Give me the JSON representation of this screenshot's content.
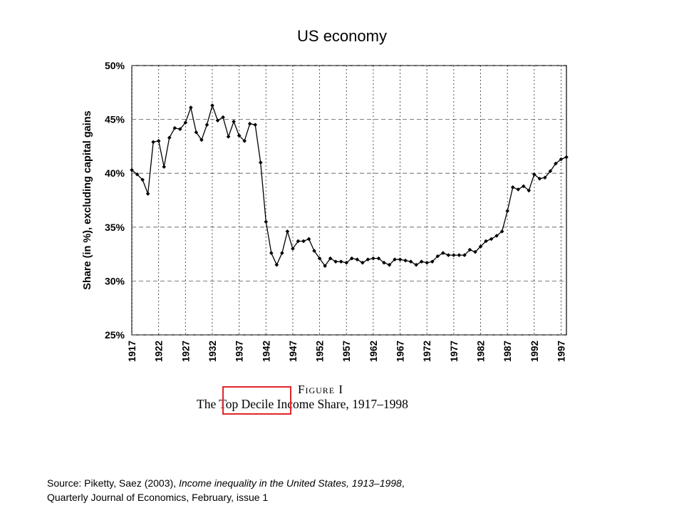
{
  "slide": {
    "title": "US economy",
    "source_prefix": "Source: Piketty, Saez (2003), ",
    "source_title": "Income inequality in the United States, 1913–1998",
    "source_suffix": ",",
    "source_line2": "Quarterly Journal of Economics, February, issue 1"
  },
  "figure": {
    "figure_label": "Figure I",
    "caption_pre": "The ",
    "caption_highlight": "Top Decile",
    "caption_post": " Income Share, 1917–1998",
    "highlight_color": "#e0262a"
  },
  "chart_data": {
    "type": "line",
    "title": "",
    "xlabel": "",
    "ylabel": "Share (in %), excluding capital gains",
    "xlim": [
      1917,
      1998
    ],
    "ylim": [
      25,
      50
    ],
    "yticks": [
      25,
      30,
      35,
      40,
      45,
      50
    ],
    "ytick_labels": [
      "25%",
      "30%",
      "35%",
      "40%",
      "45%",
      "50%"
    ],
    "xticks": [
      1917,
      1922,
      1927,
      1932,
      1937,
      1942,
      1947,
      1952,
      1957,
      1962,
      1967,
      1972,
      1977,
      1982,
      1987,
      1992,
      1997
    ],
    "grid": true,
    "series": [
      {
        "x": [
          1917,
          1918,
          1919,
          1920,
          1921,
          1922,
          1923,
          1924,
          1925,
          1926,
          1927,
          1928,
          1929,
          1930,
          1931,
          1932,
          1933,
          1934,
          1935,
          1936,
          1937,
          1938,
          1939,
          1940,
          1941,
          1942,
          1943,
          1944,
          1945,
          1946,
          1947,
          1948,
          1949,
          1950,
          1951,
          1952,
          1953,
          1954,
          1955,
          1956,
          1957,
          1958,
          1959,
          1960,
          1961,
          1962,
          1963,
          1964,
          1965,
          1966,
          1967,
          1968,
          1969,
          1970,
          1971,
          1972,
          1973,
          1974,
          1975,
          1976,
          1977,
          1978,
          1979,
          1980,
          1981,
          1982,
          1983,
          1984,
          1985,
          1986,
          1987,
          1988,
          1989,
          1990,
          1991,
          1992,
          1993,
          1994,
          1995,
          1996,
          1997,
          1998
        ],
        "values": [
          40.3,
          39.9,
          39.4,
          38.1,
          42.9,
          43.0,
          40.6,
          43.3,
          44.2,
          44.1,
          44.7,
          46.1,
          43.8,
          43.1,
          44.5,
          46.3,
          44.9,
          45.2,
          43.4,
          44.8,
          43.5,
          43.0,
          44.6,
          44.5,
          41.0,
          35.5,
          32.6,
          31.5,
          32.6,
          34.6,
          33.0,
          33.7,
          33.7,
          33.9,
          32.8,
          32.1,
          31.4,
          32.1,
          31.8,
          31.8,
          31.7,
          32.1,
          32.0,
          31.7,
          32.0,
          32.1,
          32.1,
          31.7,
          31.5,
          32.0,
          32.0,
          31.9,
          31.8,
          31.5,
          31.8,
          31.7,
          31.8,
          32.3,
          32.6,
          32.4,
          32.4,
          32.4,
          32.4,
          32.9,
          32.7,
          33.2,
          33.7,
          33.9,
          34.2,
          34.6,
          36.5,
          38.7,
          38.5,
          38.8,
          38.4,
          39.9,
          39.5,
          39.6,
          40.2,
          40.9,
          41.3,
          41.5
        ]
      }
    ]
  }
}
